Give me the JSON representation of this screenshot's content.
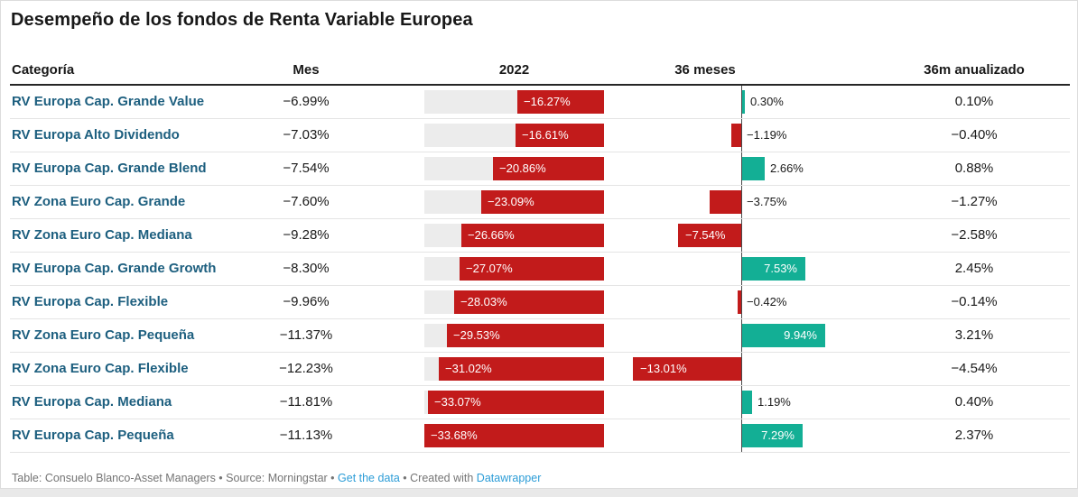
{
  "title": "Desempeño de los fondos de Renta Variable Europea",
  "columns": {
    "category": "Categoría",
    "mes": "Mes",
    "y2022": "2022",
    "m36": "36 meses",
    "annualized": "36m anualizado"
  },
  "colors": {
    "negative_red": "#c21b1b",
    "positive_green": "#13af95",
    "track_gray": "#ececec",
    "category_teal": "#1d5f7f",
    "link_blue": "#2d9dd7",
    "axis_dark": "#4a4a4a"
  },
  "chart_data": {
    "type": "table",
    "title": "Desempeño de los fondos de Renta Variable Europea",
    "bar_columns": {
      "2022": {
        "axis_at": "right",
        "range": [
          -33.68,
          0
        ]
      },
      "36 meses": {
        "axis_at": "zero",
        "range": [
          -13.01,
          9.94
        ]
      }
    },
    "rows": [
      {
        "category": "RV Europa Cap. Grande Value",
        "mes": -6.99,
        "y2022": -16.27,
        "m36": 0.3,
        "annualized": 0.1
      },
      {
        "category": "RV Europa Alto Dividendo",
        "mes": -7.03,
        "y2022": -16.61,
        "m36": -1.19,
        "annualized": -0.4
      },
      {
        "category": "RV Europa Cap. Grande Blend",
        "mes": -7.54,
        "y2022": -20.86,
        "m36": 2.66,
        "annualized": 0.88
      },
      {
        "category": "RV Zona Euro Cap. Grande",
        "mes": -7.6,
        "y2022": -23.09,
        "m36": -3.75,
        "annualized": -1.27
      },
      {
        "category": "RV Zona Euro Cap. Mediana",
        "mes": -9.28,
        "y2022": -26.66,
        "m36": -7.54,
        "annualized": -2.58
      },
      {
        "category": "RV Europa Cap. Grande Growth",
        "mes": -8.3,
        "y2022": -27.07,
        "m36": 7.53,
        "annualized": 2.45
      },
      {
        "category": "RV Europa Cap. Flexible",
        "mes": -9.96,
        "y2022": -28.03,
        "m36": -0.42,
        "annualized": -0.14
      },
      {
        "category": "RV Zona Euro Cap. Pequeña",
        "mes": -11.37,
        "y2022": -29.53,
        "m36": 9.94,
        "annualized": 3.21
      },
      {
        "category": "RV Zona Euro Cap. Flexible",
        "mes": -12.23,
        "y2022": -31.02,
        "m36": -13.01,
        "annualized": -4.54
      },
      {
        "category": "RV Europa Cap. Mediana",
        "mes": -11.81,
        "y2022": -33.07,
        "m36": 1.19,
        "annualized": 0.4
      },
      {
        "category": "RV Europa Cap. Pequeña",
        "mes": -11.13,
        "y2022": -33.68,
        "m36": 7.29,
        "annualized": 2.37
      }
    ],
    "labels": [
      {
        "mes": "−6.99%",
        "y2022": "−16.27%",
        "m36": "0.30%",
        "annualized": "0.10%"
      },
      {
        "mes": "−7.03%",
        "y2022": "−16.61%",
        "m36": "−1.19%",
        "annualized": "−0.40%"
      },
      {
        "mes": "−7.54%",
        "y2022": "−20.86%",
        "m36": "2.66%",
        "annualized": "0.88%"
      },
      {
        "mes": "−7.60%",
        "y2022": "−23.09%",
        "m36": "−3.75%",
        "annualized": "−1.27%"
      },
      {
        "mes": "−9.28%",
        "y2022": "−26.66%",
        "m36": "−7.54%",
        "annualized": "−2.58%"
      },
      {
        "mes": "−8.30%",
        "y2022": "−27.07%",
        "m36": "7.53%",
        "annualized": "2.45%"
      },
      {
        "mes": "−9.96%",
        "y2022": "−28.03%",
        "m36": "−0.42%",
        "annualized": "−0.14%"
      },
      {
        "mes": "−11.37%",
        "y2022": "−29.53%",
        "m36": "9.94%",
        "annualized": "3.21%"
      },
      {
        "mes": "−12.23%",
        "y2022": "−31.02%",
        "m36": "−13.01%",
        "annualized": "−4.54%"
      },
      {
        "mes": "−11.81%",
        "y2022": "−33.07%",
        "m36": "1.19%",
        "annualized": "0.40%"
      },
      {
        "mes": "−11.13%",
        "y2022": "−33.68%",
        "m36": "7.29%",
        "annualized": "2.37%"
      }
    ]
  },
  "footer": {
    "prefix": "Table: Consuelo Blanco-Asset Managers • Source: Morningstar • ",
    "get_data_link": "Get the data",
    "middle": " • Created with ",
    "datawrapper_link": "Datawrapper"
  }
}
